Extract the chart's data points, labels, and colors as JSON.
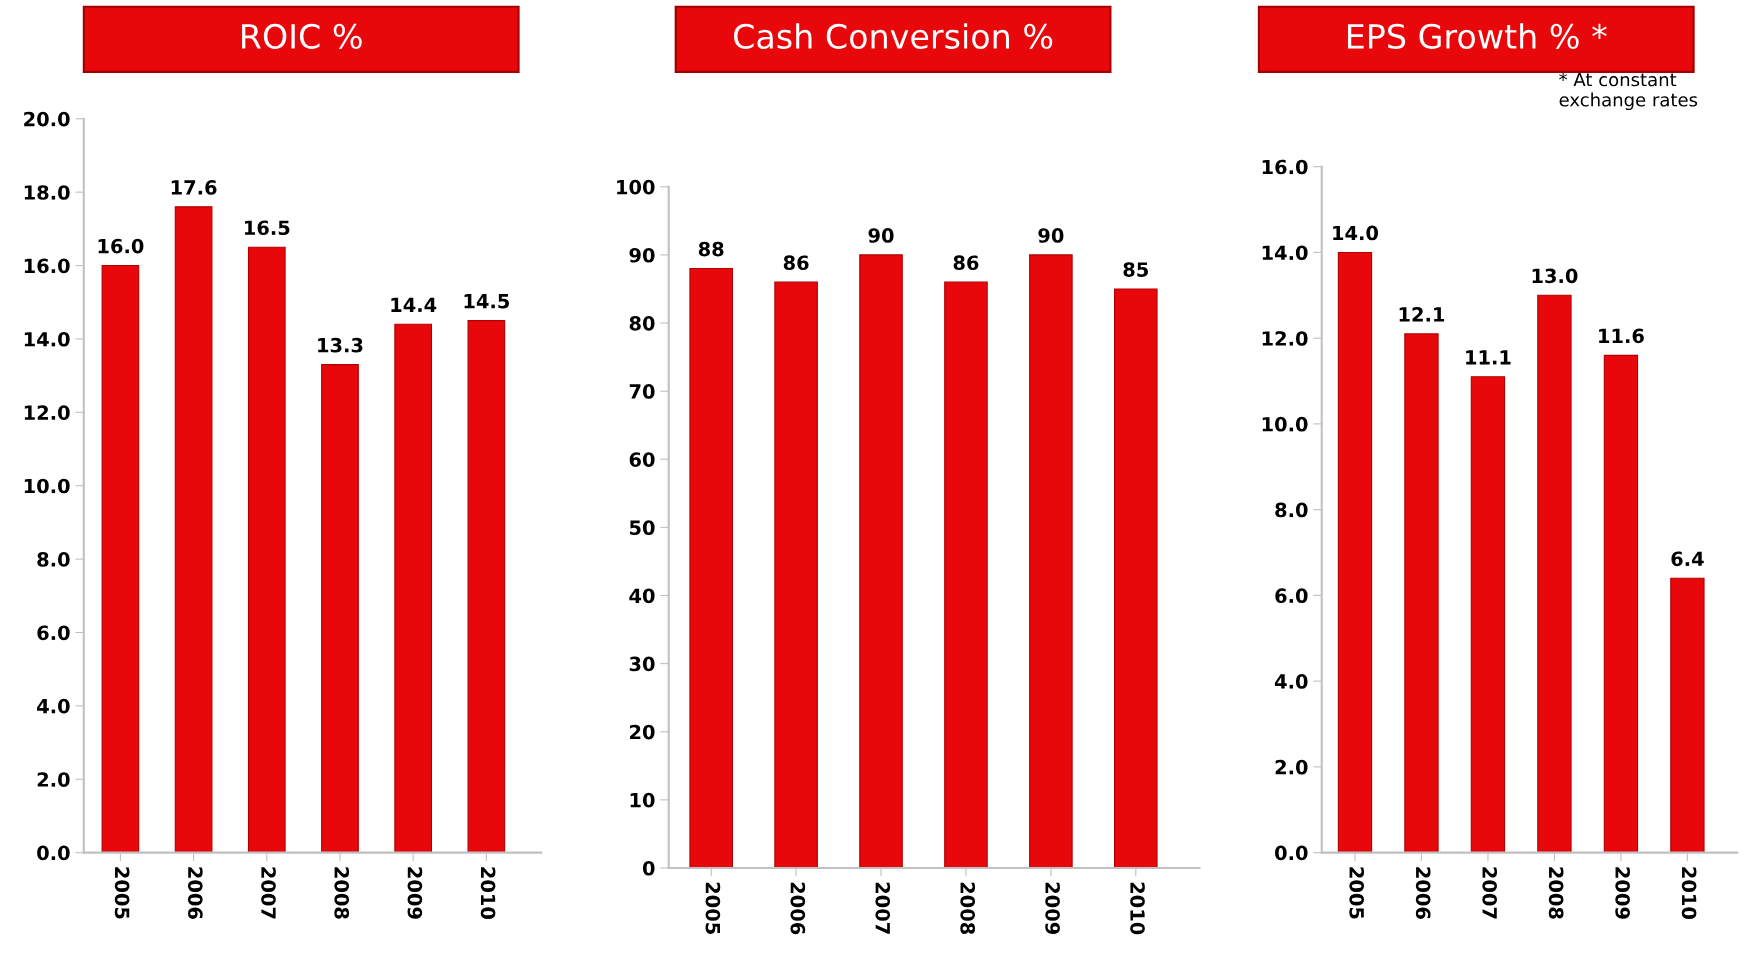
{
  "chart_data": [
    {
      "type": "bar",
      "title": "ROIC %",
      "categories": [
        "2005",
        "2006",
        "2007",
        "2008",
        "2009",
        "2010"
      ],
      "values": [
        16.0,
        17.6,
        16.5,
        13.3,
        14.4,
        14.5
      ],
      "value_labels": [
        "16.0",
        "17.6",
        "16.5",
        "13.3",
        "14.4",
        "14.5"
      ],
      "color": "#e8080c",
      "ylim": [
        0,
        20
      ],
      "yticks": [
        {
          "value": 0,
          "label": "0.0"
        },
        {
          "value": 2,
          "label": "2.0"
        },
        {
          "value": 4,
          "label": "4.0"
        },
        {
          "value": 6,
          "label": "6.0"
        },
        {
          "value": 8,
          "label": "8.0"
        },
        {
          "value": 10,
          "label": "10.0"
        },
        {
          "value": 12,
          "label": "12.0"
        },
        {
          "value": 14,
          "label": "14.0"
        },
        {
          "value": 16,
          "label": "16.0"
        },
        {
          "value": 18,
          "label": "18.0"
        },
        {
          "value": 20,
          "label": "20.0"
        }
      ],
      "grid": false,
      "legend": false
    },
    {
      "type": "bar",
      "title": "Cash Conversion %",
      "categories": [
        "2005",
        "2006",
        "2007",
        "2008",
        "2009",
        "2010"
      ],
      "values": [
        88,
        86,
        90,
        86,
        90,
        85
      ],
      "data_labels": true,
      "color": "#e8080c",
      "ylim": [
        0,
        100
      ],
      "yticks": [
        0,
        10,
        20,
        30,
        40,
        50,
        60,
        70,
        80,
        90,
        100
      ],
      "grid": false,
      "legend": false
    },
    {
      "type": "bar",
      "title": "EPS Growth % *",
      "annotations": [
        "* At constant\nexchange rates"
      ],
      "categories": [
        "2005",
        "2006",
        "2007",
        "2008",
        "2009",
        "2010"
      ],
      "values": [
        14.0,
        12.1,
        11.1,
        13.0,
        11.6,
        6.4
      ],
      "value_labels": [
        "14.0",
        "12.1",
        "11.1",
        "13.0",
        "11.6",
        "6.4"
      ],
      "color": "#e8080c",
      "ylim": [
        0,
        16
      ],
      "yticks": [
        {
          "value": 0,
          "label": "0.0"
        },
        {
          "value": 2,
          "label": "2.0"
        },
        {
          "value": 4,
          "label": "4.0"
        },
        {
          "value": 6,
          "label": "6.0"
        },
        {
          "value": 8,
          "label": "8.0"
        },
        {
          "value": 10,
          "label": "10.0"
        },
        {
          "value": 12,
          "label": "12.0"
        },
        {
          "value": 14,
          "label": "14.0"
        },
        {
          "value": 16,
          "label": "16.0"
        }
      ],
      "grid": false,
      "legend": false
    }
  ]
}
